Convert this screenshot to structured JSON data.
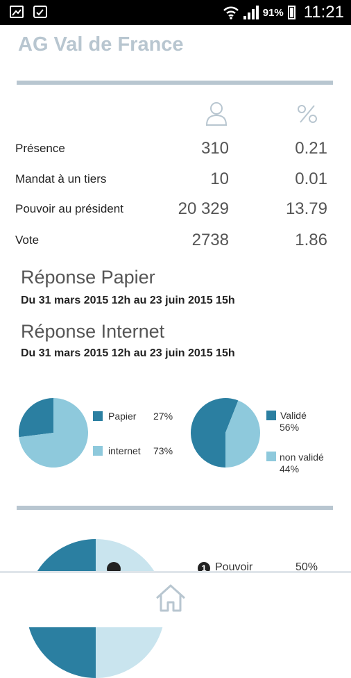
{
  "status_bar": {
    "battery_pct": "91%",
    "time": "11:21",
    "icons": [
      "image-icon",
      "briefcase-icon",
      "wifi-icon",
      "signal-icon",
      "battery-icon"
    ]
  },
  "app": {
    "title": "AG Val de France"
  },
  "stats": {
    "col_icons": [
      "person-icon",
      "percent-icon"
    ],
    "rows": [
      {
        "label": "Présence",
        "count": "310",
        "pct": "0.21"
      },
      {
        "label": "Mandat à un tiers",
        "count": "10",
        "pct": "0.01"
      },
      {
        "label": "Pouvoir au président",
        "count": "20 329",
        "pct": "13.79"
      },
      {
        "label": "Vote",
        "count": "2738",
        "pct": "1.86"
      }
    ]
  },
  "sections": {
    "paper": {
      "title": "Réponse Papier",
      "period": "Du 31 mars 2015 12h au 23 juin 2015 15h"
    },
    "internet": {
      "title": "Réponse Internet",
      "period": "Du 31 mars 2015 12h au 23 juin 2015 15h"
    }
  },
  "chart_data": [
    {
      "type": "pie",
      "categories": [
        "Papier",
        "internet"
      ],
      "values": [
        27,
        73
      ],
      "colors": [
        "#2b7fa1",
        "#8ec9dc"
      ],
      "labels": [
        "Papier",
        "internet"
      ],
      "value_labels": [
        "27%",
        "73%"
      ],
      "legend": "right"
    },
    {
      "type": "pie",
      "categories": [
        "Validé",
        "non validé"
      ],
      "values": [
        56,
        44
      ],
      "colors": [
        "#2b7fa1",
        "#8ec9dc"
      ],
      "labels": [
        "Validé",
        "non validé"
      ],
      "value_labels": [
        "56%",
        "44%"
      ],
      "legend": "right"
    },
    {
      "type": "pie",
      "categories": [
        "Pouvoir"
      ],
      "values": [
        50
      ],
      "colors": [
        "#2b7fa1",
        "#c9e4ee"
      ],
      "labels": [
        "Pouvoir"
      ],
      "value_labels": [
        "50%"
      ],
      "marker": "1",
      "legend": "right",
      "partially_visible": true
    }
  ],
  "nav": {
    "home_icon": "home-icon"
  }
}
